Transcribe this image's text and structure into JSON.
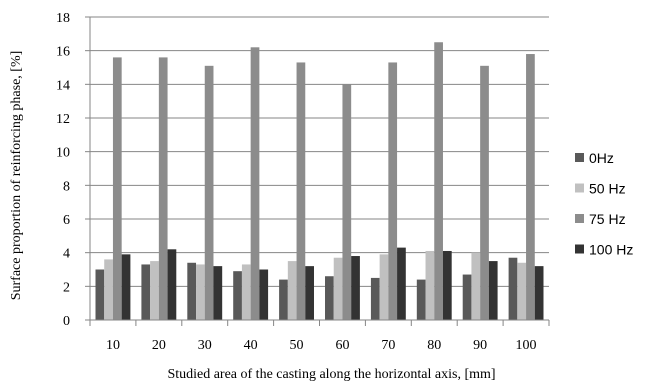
{
  "chart_data": {
    "type": "bar",
    "title": "",
    "xlabel": "Studied area of the casting along the horizontal axis, [mm]",
    "ylabel": "Surface proportion of reinforcing phase, [%]",
    "categories": [
      "10",
      "20",
      "30",
      "40",
      "50",
      "60",
      "70",
      "80",
      "90",
      "100"
    ],
    "ylim": [
      0,
      18
    ],
    "yticks": [
      "0",
      "2",
      "4",
      "6",
      "8",
      "10",
      "12",
      "14",
      "16",
      "18"
    ],
    "grid": "horizontal",
    "legend_position": "right",
    "series": [
      {
        "name": "0Hz",
        "color": "#595959",
        "values": [
          3.0,
          3.3,
          3.4,
          2.9,
          2.4,
          2.6,
          2.5,
          2.4,
          2.7,
          3.7
        ]
      },
      {
        "name": "50 Hz",
        "color": "#c0c0c0",
        "values": [
          3.6,
          3.5,
          3.3,
          3.3,
          3.5,
          3.7,
          3.9,
          4.1,
          4.0,
          3.4
        ]
      },
      {
        "name": "75 Hz",
        "color": "#8c8c8c",
        "values": [
          15.6,
          15.6,
          15.1,
          16.2,
          15.3,
          14.0,
          15.3,
          16.5,
          15.1,
          15.8
        ]
      },
      {
        "name": "100 Hz",
        "color": "#333333",
        "values": [
          3.9,
          4.2,
          3.2,
          3.0,
          3.2,
          3.8,
          4.3,
          4.1,
          3.5,
          3.2
        ]
      }
    ]
  }
}
